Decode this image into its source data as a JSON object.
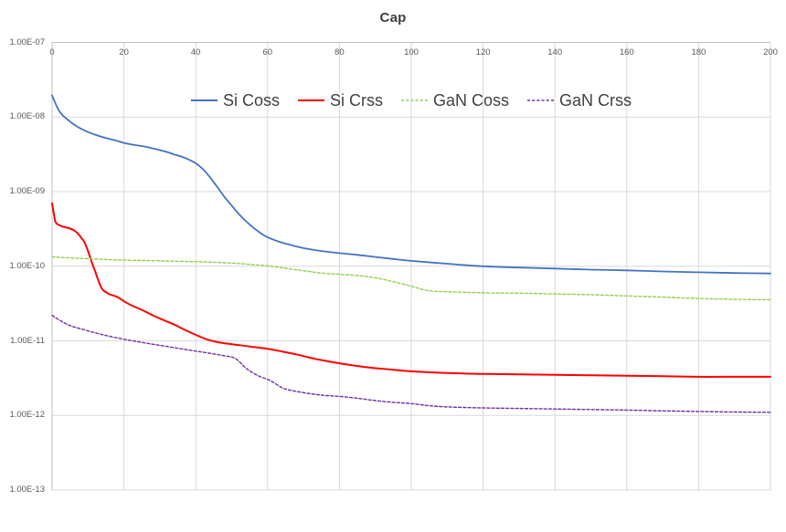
{
  "chart_data": {
    "type": "line",
    "title": "Cap",
    "x_axis": {
      "min": 0,
      "max": 200,
      "label_position": "top",
      "tick_values": [
        0,
        20,
        40,
        60,
        80,
        100,
        120,
        140,
        160,
        180,
        200
      ],
      "tick_labels": [
        "0",
        "20",
        "40",
        "60",
        "80",
        "100",
        "120",
        "140",
        "160",
        "180",
        "200"
      ]
    },
    "y_axis": {
      "scale": "log",
      "min": 1e-13,
      "max": 1e-07,
      "tick_values": [
        1e-07,
        1e-08,
        1e-09,
        1e-10,
        1e-11,
        1e-12,
        1e-13
      ],
      "tick_labels": [
        "1.00E-07",
        "1.00E-08",
        "1.00E-09",
        "1.00E-10",
        "1.00E-11",
        "1.00E-12",
        "1.00E-13"
      ]
    },
    "grid": true,
    "legend": {
      "position": "top-center-inside"
    },
    "colors": {
      "grid": "#d9d9d9",
      "axis": "#bfbfbf",
      "tick_text": "#595959",
      "title_text": "#404040"
    },
    "series": [
      {
        "name": "Si Coss",
        "color": "#4472c4",
        "dash": "solid",
        "width": 1.8,
        "points": [
          [
            0,
            1.95e-08
          ],
          [
            1,
            1.5e-08
          ],
          [
            2,
            1.2e-08
          ],
          [
            3,
            1.05e-08
          ],
          [
            4,
            9.5e-09
          ],
          [
            5,
            8.7e-09
          ],
          [
            6,
            8e-09
          ],
          [
            8,
            7e-09
          ],
          [
            10,
            6.3e-09
          ],
          [
            12,
            5.8e-09
          ],
          [
            14,
            5.4e-09
          ],
          [
            16,
            5.1e-09
          ],
          [
            18,
            4.8e-09
          ],
          [
            20,
            4.5e-09
          ],
          [
            22,
            4.3e-09
          ],
          [
            24,
            4.15e-09
          ],
          [
            26,
            4e-09
          ],
          [
            28,
            3.8e-09
          ],
          [
            30,
            3.6e-09
          ],
          [
            32,
            3.4e-09
          ],
          [
            34,
            3.15e-09
          ],
          [
            36,
            2.95e-09
          ],
          [
            38,
            2.7e-09
          ],
          [
            40,
            2.4e-09
          ],
          [
            42,
            2e-09
          ],
          [
            44,
            1.55e-09
          ],
          [
            46,
            1.15e-09
          ],
          [
            48,
            8.5e-10
          ],
          [
            50,
            6.5e-10
          ],
          [
            52,
            5e-10
          ],
          [
            54,
            4e-10
          ],
          [
            56,
            3.3e-10
          ],
          [
            58,
            2.8e-10
          ],
          [
            60,
            2.45e-10
          ],
          [
            63,
            2.15e-10
          ],
          [
            66,
            1.95e-10
          ],
          [
            70,
            1.75e-10
          ],
          [
            75,
            1.6e-10
          ],
          [
            80,
            1.5e-10
          ],
          [
            85,
            1.42e-10
          ],
          [
            90,
            1.33e-10
          ],
          [
            95,
            1.25e-10
          ],
          [
            100,
            1.18e-10
          ],
          [
            110,
            1.08e-10
          ],
          [
            120,
            1e-10
          ],
          [
            130,
            9.6e-11
          ],
          [
            140,
            9.3e-11
          ],
          [
            150,
            9e-11
          ],
          [
            160,
            8.8e-11
          ],
          [
            170,
            8.5e-11
          ],
          [
            180,
            8.3e-11
          ],
          [
            190,
            8.1e-11
          ],
          [
            200,
            8e-11
          ]
        ]
      },
      {
        "name": "Si Crss",
        "color": "#ff0000",
        "dash": "solid",
        "width": 2,
        "points": [
          [
            0,
            7e-10
          ],
          [
            0.5,
            5e-10
          ],
          [
            1,
            3.9e-10
          ],
          [
            2,
            3.55e-10
          ],
          [
            3,
            3.4e-10
          ],
          [
            4,
            3.3e-10
          ],
          [
            5,
            3.2e-10
          ],
          [
            6,
            3.05e-10
          ],
          [
            7,
            2.8e-10
          ],
          [
            8,
            2.45e-10
          ],
          [
            9,
            2.1e-10
          ],
          [
            10,
            1.6e-10
          ],
          [
            11,
            1.15e-10
          ],
          [
            12,
            8.5e-11
          ],
          [
            13,
            6.2e-11
          ],
          [
            14,
            4.9e-11
          ],
          [
            15,
            4.5e-11
          ],
          [
            16,
            4.2e-11
          ],
          [
            18,
            3.9e-11
          ],
          [
            20,
            3.4e-11
          ],
          [
            22,
            3e-11
          ],
          [
            25,
            2.6e-11
          ],
          [
            28,
            2.2e-11
          ],
          [
            31,
            1.9e-11
          ],
          [
            34,
            1.65e-11
          ],
          [
            37,
            1.4e-11
          ],
          [
            40,
            1.2e-11
          ],
          [
            43,
            1.05e-11
          ],
          [
            46,
            9.6e-12
          ],
          [
            50,
            9e-12
          ],
          [
            55,
            8.4e-12
          ],
          [
            60,
            7.8e-12
          ],
          [
            64,
            7.2e-12
          ],
          [
            68,
            6.6e-12
          ],
          [
            72,
            5.9e-12
          ],
          [
            76,
            5.4e-12
          ],
          [
            80,
            5e-12
          ],
          [
            85,
            4.6e-12
          ],
          [
            90,
            4.3e-12
          ],
          [
            95,
            4.1e-12
          ],
          [
            100,
            3.9e-12
          ],
          [
            110,
            3.7e-12
          ],
          [
            120,
            3.6e-12
          ],
          [
            130,
            3.55e-12
          ],
          [
            140,
            3.5e-12
          ],
          [
            150,
            3.45e-12
          ],
          [
            160,
            3.4e-12
          ],
          [
            170,
            3.35e-12
          ],
          [
            180,
            3.3e-12
          ],
          [
            190,
            3.3e-12
          ],
          [
            200,
            3.3e-12
          ]
        ]
      },
      {
        "name": "GaN Coss",
        "color": "#92d050",
        "dash": "dashed",
        "width": 1.4,
        "points": [
          [
            0,
            1.33e-10
          ],
          [
            10,
            1.26e-10
          ],
          [
            20,
            1.21e-10
          ],
          [
            30,
            1.18e-10
          ],
          [
            40,
            1.15e-10
          ],
          [
            45,
            1.13e-10
          ],
          [
            50,
            1.1e-10
          ],
          [
            55,
            1.06e-10
          ],
          [
            60,
            1.01e-10
          ],
          [
            65,
            9.4e-11
          ],
          [
            70,
            8.7e-11
          ],
          [
            75,
            8.1e-11
          ],
          [
            80,
            7.8e-11
          ],
          [
            85,
            7.5e-11
          ],
          [
            90,
            7e-11
          ],
          [
            95,
            6.2e-11
          ],
          [
            100,
            5.4e-11
          ],
          [
            103,
            4.9e-11
          ],
          [
            106,
            4.65e-11
          ],
          [
            110,
            4.55e-11
          ],
          [
            120,
            4.4e-11
          ],
          [
            130,
            4.35e-11
          ],
          [
            140,
            4.25e-11
          ],
          [
            150,
            4.15e-11
          ],
          [
            160,
            4e-11
          ],
          [
            170,
            3.85e-11
          ],
          [
            180,
            3.7e-11
          ],
          [
            190,
            3.6e-11
          ],
          [
            200,
            3.55e-11
          ]
        ]
      },
      {
        "name": "GaN Crss",
        "color": "#7030a0",
        "dash": "dashed",
        "width": 1.4,
        "points": [
          [
            0,
            2.2e-11
          ],
          [
            2,
            1.9e-11
          ],
          [
            5,
            1.6e-11
          ],
          [
            8,
            1.45e-11
          ],
          [
            12,
            1.28e-11
          ],
          [
            16,
            1.15e-11
          ],
          [
            20,
            1.05e-11
          ],
          [
            24,
            9.7e-12
          ],
          [
            28,
            9e-12
          ],
          [
            32,
            8.4e-12
          ],
          [
            36,
            7.8e-12
          ],
          [
            40,
            7.3e-12
          ],
          [
            44,
            6.8e-12
          ],
          [
            48,
            6.3e-12
          ],
          [
            51,
            5.8e-12
          ],
          [
            54,
            4.3e-12
          ],
          [
            56,
            3.7e-12
          ],
          [
            58,
            3.3e-12
          ],
          [
            60,
            3.05e-12
          ],
          [
            62,
            2.7e-12
          ],
          [
            64,
            2.35e-12
          ],
          [
            66,
            2.2e-12
          ],
          [
            68,
            2.1e-12
          ],
          [
            72,
            1.95e-12
          ],
          [
            76,
            1.85e-12
          ],
          [
            80,
            1.8e-12
          ],
          [
            85,
            1.7e-12
          ],
          [
            90,
            1.58e-12
          ],
          [
            95,
            1.5e-12
          ],
          [
            100,
            1.44e-12
          ],
          [
            105,
            1.35e-12
          ],
          [
            110,
            1.3e-12
          ],
          [
            120,
            1.26e-12
          ],
          [
            130,
            1.24e-12
          ],
          [
            140,
            1.22e-12
          ],
          [
            150,
            1.2e-12
          ],
          [
            160,
            1.18e-12
          ],
          [
            170,
            1.15e-12
          ],
          [
            180,
            1.13e-12
          ],
          [
            190,
            1.11e-12
          ],
          [
            200,
            1.1e-12
          ]
        ]
      }
    ]
  }
}
